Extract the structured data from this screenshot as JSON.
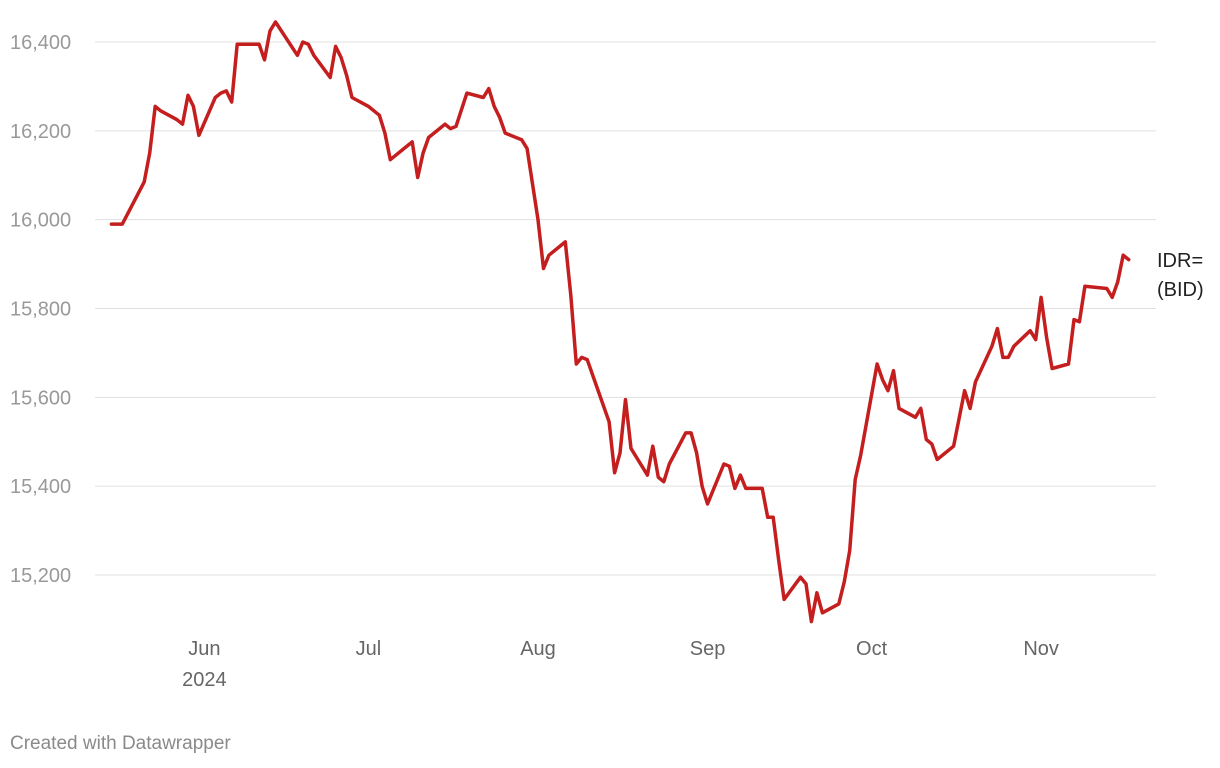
{
  "footer": {
    "credit": "Created with Datawrapper"
  },
  "chart_data": {
    "type": "line",
    "series_label": [
      "IDR=",
      "(BID)"
    ],
    "line_color": "#c41e1e",
    "grid": true,
    "ylim": [
      15100,
      16450
    ],
    "y_ticks": [
      15200,
      15400,
      15600,
      15800,
      16000,
      16200,
      16400
    ],
    "y_tick_labels": [
      "15,200",
      "15,400",
      "15,600",
      "15,800",
      "16,000",
      "16,200",
      "16,400"
    ],
    "x_range": [
      "2024-05-12",
      "2024-11-22"
    ],
    "x_ticks": [
      {
        "date": "2024-06-01",
        "label": "Jun",
        "sublabel": "2024"
      },
      {
        "date": "2024-07-01",
        "label": "Jul"
      },
      {
        "date": "2024-08-01",
        "label": "Aug"
      },
      {
        "date": "2024-09-01",
        "label": "Sep"
      },
      {
        "date": "2024-10-01",
        "label": "Oct"
      },
      {
        "date": "2024-11-01",
        "label": "Nov"
      }
    ],
    "series": [
      {
        "points": [
          [
            "2024-05-15",
            15990
          ],
          [
            "2024-05-17",
            15990
          ],
          [
            "2024-05-21",
            16085
          ],
          [
            "2024-05-22",
            16150
          ],
          [
            "2024-05-23",
            16255
          ],
          [
            "2024-05-24",
            16245
          ],
          [
            "2024-05-27",
            16225
          ],
          [
            "2024-05-28",
            16215
          ],
          [
            "2024-05-29",
            16280
          ],
          [
            "2024-05-30",
            16255
          ],
          [
            "2024-05-31",
            16190
          ],
          [
            "2024-06-03",
            16275
          ],
          [
            "2024-06-04",
            16285
          ],
          [
            "2024-06-05",
            16290
          ],
          [
            "2024-06-06",
            16265
          ],
          [
            "2024-06-07",
            16395
          ],
          [
            "2024-06-11",
            16395
          ],
          [
            "2024-06-12",
            16360
          ],
          [
            "2024-06-13",
            16425
          ],
          [
            "2024-06-14",
            16445
          ],
          [
            "2024-06-18",
            16370
          ],
          [
            "2024-06-19",
            16400
          ],
          [
            "2024-06-20",
            16395
          ],
          [
            "2024-06-21",
            16370
          ],
          [
            "2024-06-24",
            16320
          ],
          [
            "2024-06-25",
            16390
          ],
          [
            "2024-06-26",
            16365
          ],
          [
            "2024-06-27",
            16325
          ],
          [
            "2024-06-28",
            16275
          ],
          [
            "2024-07-01",
            16255
          ],
          [
            "2024-07-02",
            16245
          ],
          [
            "2024-07-03",
            16235
          ],
          [
            "2024-07-04",
            16195
          ],
          [
            "2024-07-05",
            16135
          ],
          [
            "2024-07-09",
            16175
          ],
          [
            "2024-07-10",
            16095
          ],
          [
            "2024-07-11",
            16150
          ],
          [
            "2024-07-12",
            16185
          ],
          [
            "2024-07-15",
            16215
          ],
          [
            "2024-07-16",
            16205
          ],
          [
            "2024-07-17",
            16210
          ],
          [
            "2024-07-19",
            16285
          ],
          [
            "2024-07-22",
            16275
          ],
          [
            "2024-07-23",
            16295
          ],
          [
            "2024-07-24",
            16255
          ],
          [
            "2024-07-25",
            16230
          ],
          [
            "2024-07-26",
            16195
          ],
          [
            "2024-07-29",
            16180
          ],
          [
            "2024-07-30",
            16160
          ],
          [
            "2024-08-01",
            16000
          ],
          [
            "2024-08-02",
            15890
          ],
          [
            "2024-08-03",
            15920
          ],
          [
            "2024-08-06",
            15950
          ],
          [
            "2024-08-07",
            15830
          ],
          [
            "2024-08-08",
            15675
          ],
          [
            "2024-08-09",
            15690
          ],
          [
            "2024-08-10",
            15685
          ],
          [
            "2024-08-14",
            15545
          ],
          [
            "2024-08-15",
            15430
          ],
          [
            "2024-08-16",
            15475
          ],
          [
            "2024-08-17",
            15595
          ],
          [
            "2024-08-18",
            15485
          ],
          [
            "2024-08-21",
            15425
          ],
          [
            "2024-08-22",
            15490
          ],
          [
            "2024-08-23",
            15420
          ],
          [
            "2024-08-24",
            15410
          ],
          [
            "2024-08-25",
            15450
          ],
          [
            "2024-08-28",
            15520
          ],
          [
            "2024-08-29",
            15520
          ],
          [
            "2024-08-30",
            15475
          ],
          [
            "2024-08-31",
            15400
          ],
          [
            "2024-09-01",
            15360
          ],
          [
            "2024-09-04",
            15450
          ],
          [
            "2024-09-05",
            15445
          ],
          [
            "2024-09-06",
            15395
          ],
          [
            "2024-09-07",
            15425
          ],
          [
            "2024-09-08",
            15395
          ],
          [
            "2024-09-11",
            15395
          ],
          [
            "2024-09-12",
            15330
          ],
          [
            "2024-09-13",
            15330
          ],
          [
            "2024-09-14",
            15235
          ],
          [
            "2024-09-15",
            15145
          ],
          [
            "2024-09-18",
            15195
          ],
          [
            "2024-09-19",
            15180
          ],
          [
            "2024-09-20",
            15095
          ],
          [
            "2024-09-21",
            15160
          ],
          [
            "2024-09-22",
            15115
          ],
          [
            "2024-09-25",
            15135
          ],
          [
            "2024-09-26",
            15185
          ],
          [
            "2024-09-27",
            15255
          ],
          [
            "2024-09-28",
            15415
          ],
          [
            "2024-09-29",
            15470
          ],
          [
            "2024-10-02",
            15675
          ],
          [
            "2024-10-03",
            15640
          ],
          [
            "2024-10-04",
            15615
          ],
          [
            "2024-10-05",
            15660
          ],
          [
            "2024-10-06",
            15575
          ],
          [
            "2024-10-09",
            15555
          ],
          [
            "2024-10-10",
            15575
          ],
          [
            "2024-10-11",
            15505
          ],
          [
            "2024-10-12",
            15495
          ],
          [
            "2024-10-13",
            15460
          ],
          [
            "2024-10-16",
            15490
          ],
          [
            "2024-10-18",
            15615
          ],
          [
            "2024-10-19",
            15575
          ],
          [
            "2024-10-20",
            15635
          ],
          [
            "2024-10-23",
            15715
          ],
          [
            "2024-10-24",
            15755
          ],
          [
            "2024-10-25",
            15690
          ],
          [
            "2024-10-26",
            15690
          ],
          [
            "2024-10-27",
            15715
          ],
          [
            "2024-10-30",
            15750
          ],
          [
            "2024-10-31",
            15730
          ],
          [
            "2024-11-01",
            15825
          ],
          [
            "2024-11-02",
            15735
          ],
          [
            "2024-11-03",
            15665
          ],
          [
            "2024-11-06",
            15675
          ],
          [
            "2024-11-07",
            15775
          ],
          [
            "2024-11-08",
            15770
          ],
          [
            "2024-11-09",
            15850
          ],
          [
            "2024-11-13",
            15845
          ],
          [
            "2024-11-14",
            15825
          ],
          [
            "2024-11-15",
            15860
          ],
          [
            "2024-11-16",
            15920
          ],
          [
            "2024-11-17",
            15910
          ]
        ]
      }
    ]
  }
}
